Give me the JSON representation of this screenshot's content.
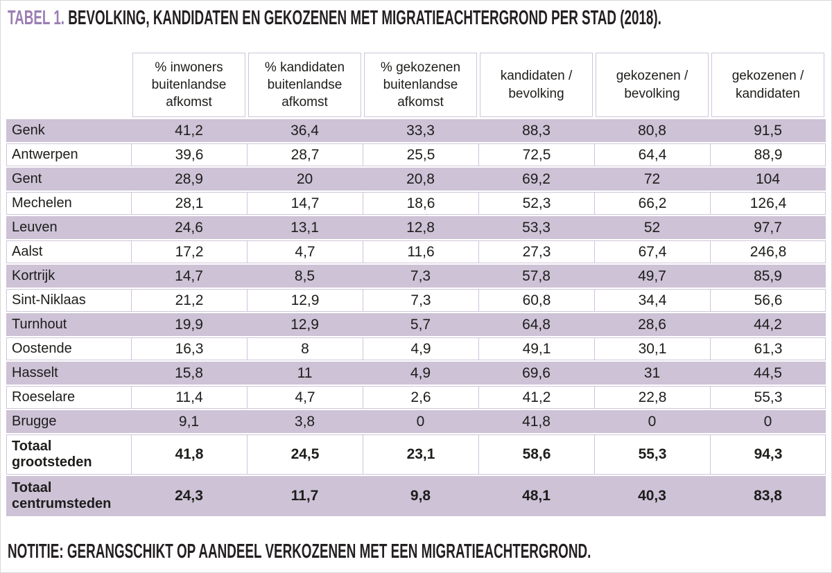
{
  "title": {
    "prefix": "TABEL 1.",
    "text": " BEVOLKING, KANDIDATEN EN GEKOZENEN MET MIGRATIEACHTERGROND PER STAD (2018)."
  },
  "note": "NOTITIE: GERANGSCHIKT OP AANDEEL VERKOZENEN MET EEN MIGRATIEACHTERGROND.",
  "colors": {
    "accent_purple": "#9b7eb3",
    "row_purple": "#cdc2d6",
    "border_purple": "#cfc4da",
    "frame_gray": "#d8d8d8",
    "text": "#1d1d1b"
  },
  "chart_data": {
    "type": "table",
    "title": "TABEL 1. BEVOLKING, KANDIDATEN EN GEKOZENEN MET MIGRATIEACHTERGROND PER STAD (2018).",
    "note": "NOTITIE: GERANGSCHIKT OP AANDEEL VERKOZENEN MET EEN MIGRATIEACHTERGROND.",
    "columns": [
      "% inwoners buitenlandse afkomst",
      "% kandidaten buitenlandse afkomst",
      "% gekozenen buitenlandse afkomst",
      "kandidaten / bevolking",
      "gekozenen / bevolking",
      "gekozenen / kandidaten"
    ],
    "rows": [
      {
        "label": "Genk",
        "values": [
          "41,2",
          "36,4",
          "33,3",
          "88,3",
          "80,8",
          "91,5"
        ],
        "shaded": true,
        "bold": false
      },
      {
        "label": "Antwerpen",
        "values": [
          "39,6",
          "28,7",
          "25,5",
          "72,5",
          "64,4",
          "88,9"
        ],
        "shaded": false,
        "bold": false
      },
      {
        "label": "Gent",
        "values": [
          "28,9",
          "20",
          "20,8",
          "69,2",
          "72",
          "104"
        ],
        "shaded": true,
        "bold": false
      },
      {
        "label": "Mechelen",
        "values": [
          "28,1",
          "14,7",
          "18,6",
          "52,3",
          "66,2",
          "126,4"
        ],
        "shaded": false,
        "bold": false
      },
      {
        "label": "Leuven",
        "values": [
          "24,6",
          "13,1",
          "12,8",
          "53,3",
          "52",
          "97,7"
        ],
        "shaded": true,
        "bold": false
      },
      {
        "label": "Aalst",
        "values": [
          "17,2",
          "4,7",
          "11,6",
          "27,3",
          "67,4",
          "246,8"
        ],
        "shaded": false,
        "bold": false
      },
      {
        "label": "Kortrijk",
        "values": [
          "14,7",
          "8,5",
          "7,3",
          "57,8",
          "49,7",
          "85,9"
        ],
        "shaded": true,
        "bold": false
      },
      {
        "label": "Sint-Niklaas",
        "values": [
          "21,2",
          "12,9",
          "7,3",
          "60,8",
          "34,4",
          "56,6"
        ],
        "shaded": false,
        "bold": false
      },
      {
        "label": "Turnhout",
        "values": [
          "19,9",
          "12,9",
          "5,7",
          "64,8",
          "28,6",
          "44,2"
        ],
        "shaded": true,
        "bold": false
      },
      {
        "label": "Oostende",
        "values": [
          "16,3",
          "8",
          "4,9",
          "49,1",
          "30,1",
          "61,3"
        ],
        "shaded": false,
        "bold": false
      },
      {
        "label": "Hasselt",
        "values": [
          "15,8",
          "11",
          "4,9",
          "69,6",
          "31",
          "44,5"
        ],
        "shaded": true,
        "bold": false
      },
      {
        "label": "Roeselare",
        "values": [
          "11,4",
          "4,7",
          "2,6",
          "41,2",
          "22,8",
          "55,3"
        ],
        "shaded": false,
        "bold": false
      },
      {
        "label": "Brugge",
        "values": [
          "9,1",
          "3,8",
          "0",
          "41,8",
          "0",
          "0"
        ],
        "shaded": true,
        "bold": false
      },
      {
        "label": "Totaal grootsteden",
        "values": [
          "41,8",
          "24,5",
          "23,1",
          "58,6",
          "55,3",
          "94,3"
        ],
        "shaded": false,
        "bold": true
      },
      {
        "label": "Totaal centrumsteden",
        "values": [
          "24,3",
          "11,7",
          "9,8",
          "48,1",
          "40,3",
          "83,8"
        ],
        "shaded": true,
        "bold": true
      }
    ]
  }
}
